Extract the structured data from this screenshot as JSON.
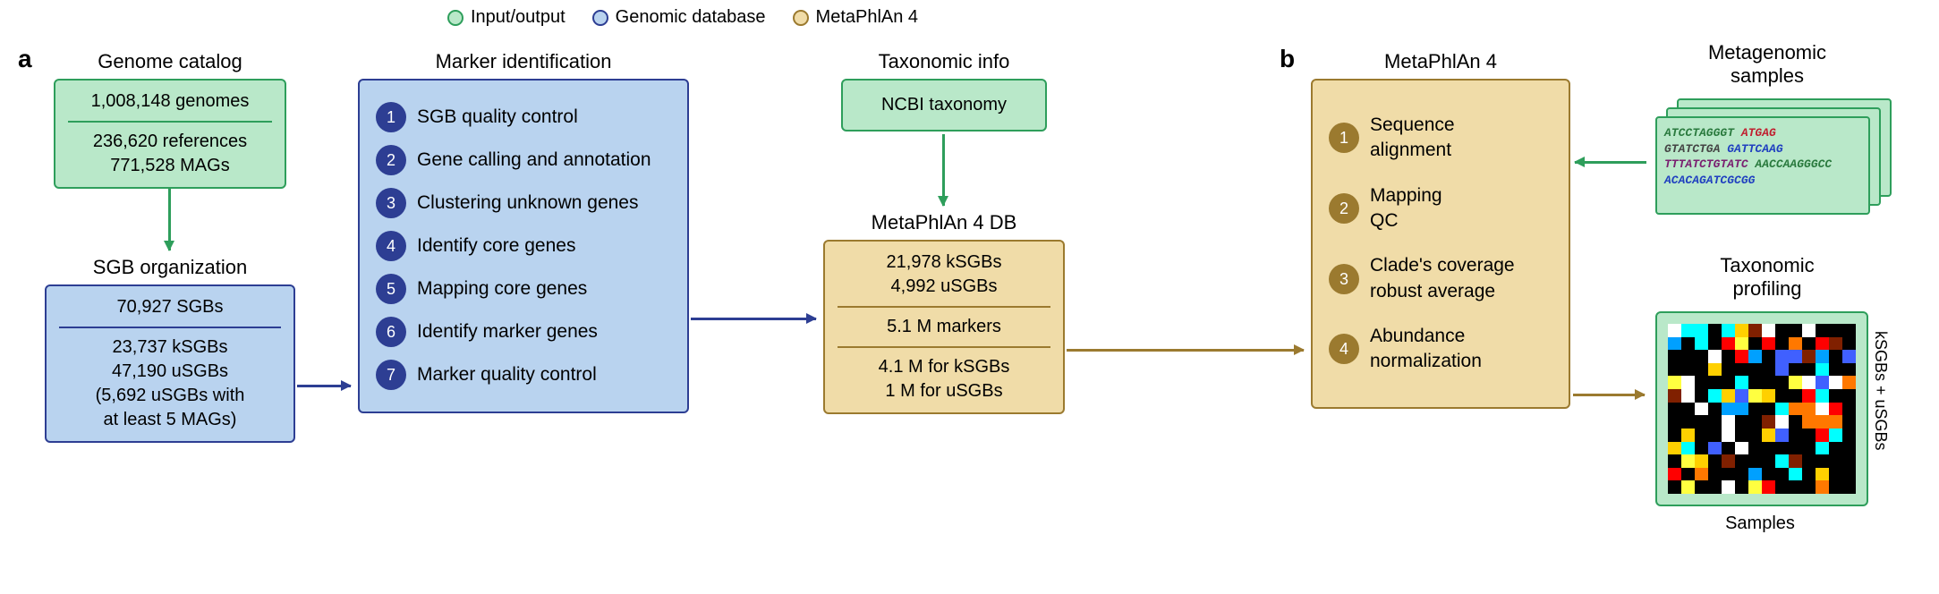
{
  "colors": {
    "green_fill": "#b9e8c9",
    "green_border": "#2e9e5b",
    "blue_fill": "#b9d3ef",
    "blue_border": "#2d3e93",
    "tan_fill": "#f0dca8",
    "tan_border": "#9b7a2f",
    "step_blue": "#2d3e93",
    "step_tan": "#9b7a2f",
    "green_arrow": "#2e9e5b",
    "blue_arrow": "#2d3e93",
    "tan_arrow": "#9b7a2f"
  },
  "legend": {
    "io": "Input/output",
    "genomic": "Genomic database",
    "mp4": "MetaPhlAn 4"
  },
  "panel_a": "a",
  "panel_b": "b",
  "genome_catalog": {
    "title": "Genome catalog",
    "line1": "1,008,148 genomes",
    "line2": "236,620 references",
    "line3": "771,528 MAGs"
  },
  "sgb_org": {
    "title": "SGB organization",
    "line1": "70,927 SGBs",
    "line2": "23,737 kSGBs",
    "line3": "47,190 uSGBs",
    "line4": "(5,692 uSGBs with",
    "line5": "at least 5 MAGs)"
  },
  "marker_id": {
    "title": "Marker identification",
    "steps": [
      "SGB quality control",
      "Gene calling and annotation",
      "Clustering unknown genes",
      "Identify core genes",
      "Mapping core genes",
      "Identify marker genes",
      "Marker quality control"
    ]
  },
  "tax_info": {
    "title": "Taxonomic info",
    "label": "NCBI taxonomy"
  },
  "mp4_db": {
    "title": "MetaPhlAn 4 DB",
    "line1": "21,978 kSGBs",
    "line2": "4,992 uSGBs",
    "line3": "5.1 M markers",
    "line4": "4.1 M for kSGBs",
    "line5": "1 M for uSGBs"
  },
  "mp4": {
    "title": "MetaPhlAn 4",
    "steps": [
      "Sequence\nalignment",
      "Mapping\nQC",
      "Clade's coverage\nrobust average",
      "Abundance\nnormalization"
    ]
  },
  "samples": {
    "title": "Metagenomic\nsamples",
    "seq": [
      {
        "t": "ATCCTAGGGT",
        "c": "#2a7a3e"
      },
      {
        "t": "ATGAG",
        "c": "#c02030"
      },
      {
        "t": "GTATCTGA",
        "c": "#444"
      },
      {
        "t": "GATTCAAG",
        "c": "#2040c0"
      },
      {
        "t": "TTTATCTGTATC",
        "c": "#7a2070"
      },
      {
        "t": "AACCAAGGGCC",
        "c": "#2a7a3e"
      },
      {
        "t": "ACACAGATCGCGG",
        "c": "#2040c0"
      }
    ]
  },
  "profiling": {
    "title": "Taxonomic\nprofiling",
    "xlabel": "Samples",
    "ylabel": "kSGBs + uSGBs"
  },
  "heatmap_palette": [
    "#000000",
    "#ff0000",
    "#ff7800",
    "#ffd000",
    "#ffff40",
    "#4060ff",
    "#00a0ff",
    "#00ffff",
    "#ffffff",
    "#802000"
  ]
}
